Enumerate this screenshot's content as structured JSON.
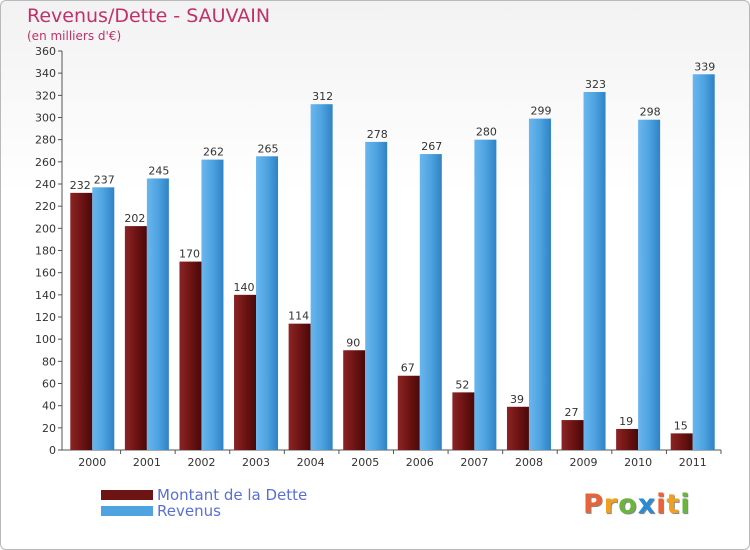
{
  "chart_data": {
    "type": "bar",
    "title": "Revenus/Dette - SAUVAIN",
    "subtitle": "(en milliers d'€)",
    "categories": [
      "2000",
      "2001",
      "2002",
      "2003",
      "2004",
      "2005",
      "2006",
      "2007",
      "2008",
      "2009",
      "2010",
      "2011"
    ],
    "series": [
      {
        "name": "Montant de la Dette",
        "color": "#7a1a1a",
        "values": [
          232,
          202,
          170,
          140,
          114,
          90,
          67,
          52,
          39,
          27,
          19,
          15
        ]
      },
      {
        "name": "Revenus",
        "color": "#4ea3e0",
        "values": [
          237,
          245,
          262,
          265,
          312,
          278,
          267,
          280,
          299,
          323,
          298,
          339
        ]
      }
    ],
    "ylim": [
      0,
      360
    ],
    "ytick_step": 20,
    "grid": false,
    "legend": "bottom-left"
  },
  "logo": {
    "letters": [
      "P",
      "r",
      "o",
      "x",
      "i",
      "t",
      "i"
    ],
    "colors": [
      "#e8623a",
      "#f0a020",
      "#6cb33f",
      "#2a8ad4",
      "#e8623a",
      "#f0a020",
      "#6cb33f"
    ]
  }
}
